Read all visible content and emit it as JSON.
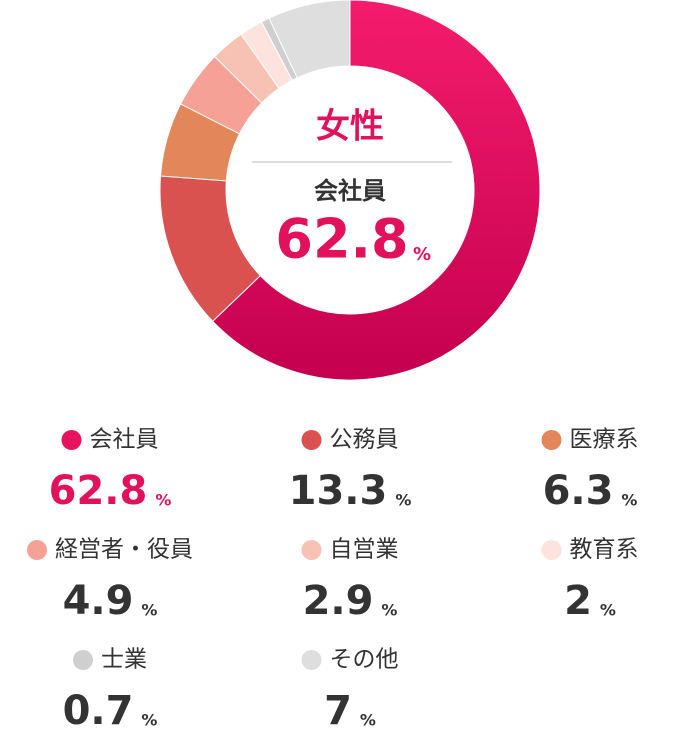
{
  "chart_data": {
    "type": "donut",
    "title": "女性",
    "unit": "%",
    "categories": [
      "会社員",
      "公務員",
      "医療系",
      "経営者・役員",
      "自営業",
      "教育系",
      "士業",
      "その他"
    ],
    "values": [
      62.8,
      13.3,
      6.3,
      4.9,
      2.9,
      2.0,
      0.7,
      7.0
    ],
    "colors": [
      "#e8135f",
      "#d9524f",
      "#e3865a",
      "#f5a195",
      "#f7c2b3",
      "#fde2dd",
      "#cfcfcf",
      "#dedede"
    ],
    "highlight_color": "#e2115c"
  }
}
